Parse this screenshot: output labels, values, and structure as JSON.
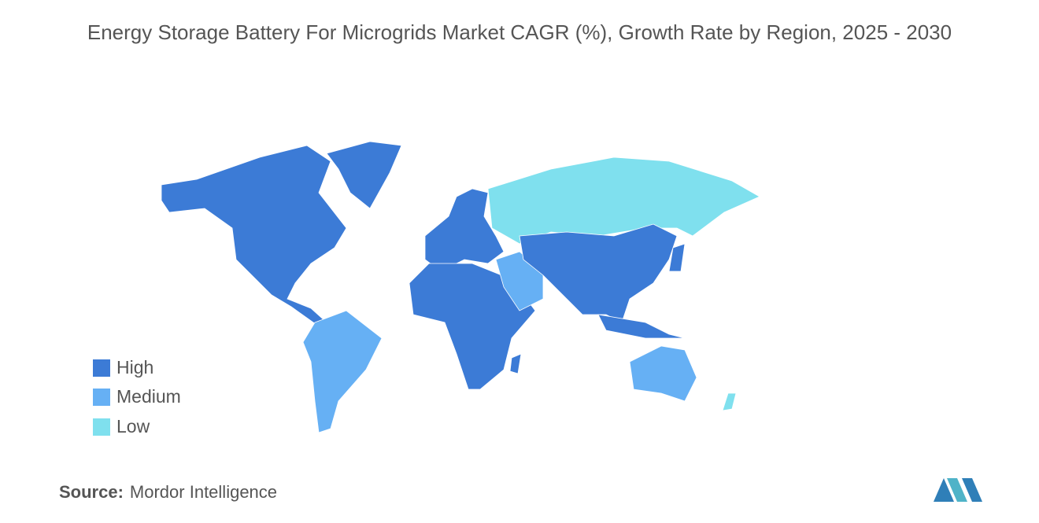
{
  "title": "Energy Storage Battery For Microgrids Market CAGR (%), Growth Rate by Region, 2025 - 2030",
  "legend": [
    {
      "label": "High",
      "color": "#3c7bd6"
    },
    {
      "label": "Medium",
      "color": "#66b0f4"
    },
    {
      "label": "Low",
      "color": "#7fe0ee"
    }
  ],
  "source": {
    "label": "Source:",
    "text": "Mordor Intelligence"
  }
}
